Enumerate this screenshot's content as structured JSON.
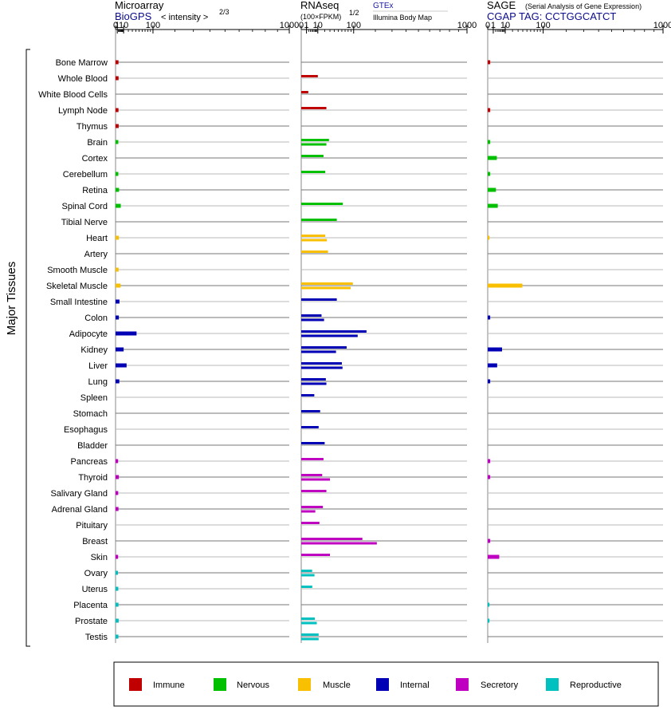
{
  "chart_data": {
    "type": "bar",
    "y_axis_title": "Major Tissues",
    "tissues": [
      {
        "name": "Bone Marrow",
        "group": "Immune",
        "microarray": [
          2.2
        ],
        "rnaseq": [],
        "sage": [
          0.2
        ]
      },
      {
        "name": "Whole Blood",
        "group": "Immune",
        "microarray": [
          2.3
        ],
        "rnaseq": [
          10
        ],
        "sage": []
      },
      {
        "name": "White Blood Cells",
        "group": "Immune",
        "microarray": [],
        "rnaseq": [
          1.8
        ],
        "sage": []
      },
      {
        "name": "Lymph Node",
        "group": "Immune",
        "microarray": [
          2.2
        ],
        "rnaseq": [
          23
        ],
        "sage": [
          0.2
        ]
      },
      {
        "name": "Thymus",
        "group": "Immune",
        "microarray": [
          2.4
        ],
        "rnaseq": [],
        "sage": []
      },
      {
        "name": "Brain",
        "group": "Nervous",
        "microarray": [
          2.0
        ],
        "rnaseq": [
          28,
          23
        ],
        "sage": [
          0.2
        ]
      },
      {
        "name": "Cortex",
        "group": "Nervous",
        "microarray": [],
        "rnaseq": [
          18
        ],
        "sage": [
          2.7
        ]
      },
      {
        "name": "Cerebellum",
        "group": "Nervous",
        "microarray": [
          2.0
        ],
        "rnaseq": [
          21
        ],
        "sage": [
          0.2
        ]
      },
      {
        "name": "Retina",
        "group": "Nervous",
        "microarray": [
          2.8
        ],
        "rnaseq": [],
        "sage": [
          2.2
        ]
      },
      {
        "name": "Spinal Cord",
        "group": "Nervous",
        "microarray": [
          5.2
        ],
        "rnaseq": [
          63
        ],
        "sage": [
          3.3
        ]
      },
      {
        "name": "Tibial Nerve",
        "group": "Nervous",
        "microarray": [],
        "rnaseq": [
          46
        ],
        "sage": []
      },
      {
        "name": "Heart",
        "group": "Muscle",
        "microarray": [
          2.6
        ],
        "rnaseq": [
          21,
          24
        ],
        "sage": [
          0.1
        ]
      },
      {
        "name": "Artery",
        "group": "Muscle",
        "microarray": [],
        "rnaseq": [
          26
        ],
        "sage": []
      },
      {
        "name": "Smooth Muscle",
        "group": "Muscle",
        "microarray": [
          2.3
        ],
        "rnaseq": [],
        "sage": []
      },
      {
        "name": "Skeletal Muscle",
        "group": "Muscle",
        "microarray": [
          4.9
        ],
        "rnaseq": [
          97,
          89
        ],
        "sage": [
          39
        ]
      },
      {
        "name": "Small Intestine",
        "group": "Internal",
        "microarray": [
          3.4
        ],
        "rnaseq": [
          46
        ],
        "sage": []
      },
      {
        "name": "Colon",
        "group": "Internal",
        "microarray": [
          2.6
        ],
        "rnaseq": [
          15,
          19
        ],
        "sage": [
          0.2
        ]
      },
      {
        "name": "Adipocyte",
        "group": "Internal",
        "microarray": [
          42
        ],
        "rnaseq": [
          155,
          116
        ],
        "sage": []
      },
      {
        "name": "Kidney",
        "group": "Internal",
        "microarray": [
          10
        ],
        "rnaseq": [
          75,
          44
        ],
        "sage": [
          6.7
        ]
      },
      {
        "name": "Liver",
        "group": "Internal",
        "microarray": [
          16
        ],
        "rnaseq": [
          60,
          62
        ],
        "sage": [
          2.9
        ]
      },
      {
        "name": "Lung",
        "group": "Internal",
        "microarray": [
          3.2
        ],
        "rnaseq": [
          22,
          23
        ],
        "sage": [
          0.2
        ]
      },
      {
        "name": "Spleen",
        "group": "Internal",
        "microarray": [],
        "rnaseq": [
          6.2
        ],
        "sage": []
      },
      {
        "name": "Stomach",
        "group": "Internal",
        "microarray": [],
        "rnaseq": [
          13
        ],
        "sage": []
      },
      {
        "name": "Esophagus",
        "group": "Internal",
        "microarray": [],
        "rnaseq": [
          11
        ],
        "sage": []
      },
      {
        "name": "Bladder",
        "group": "Internal",
        "microarray": [],
        "rnaseq": [
          20
        ],
        "sage": []
      },
      {
        "name": "Pancreas",
        "group": "Secretory",
        "microarray": [
          1.8
        ],
        "rnaseq": [
          18
        ],
        "sage": [
          0.2
        ]
      },
      {
        "name": "Thyroid",
        "group": "Secretory",
        "microarray": [
          2.6
        ],
        "rnaseq": [
          16,
          30
        ],
        "sage": [
          0.2
        ]
      },
      {
        "name": "Salivary Gland",
        "group": "Secretory",
        "microarray": [
          1.9
        ],
        "rnaseq": [
          23
        ],
        "sage": []
      },
      {
        "name": "Adrenal Gland",
        "group": "Secretory",
        "microarray": [
          2.2
        ],
        "rnaseq": [
          17,
          7.2
        ],
        "sage": []
      },
      {
        "name": "Pituitary",
        "group": "Secretory",
        "microarray": [],
        "rnaseq": [
          12
        ],
        "sage": []
      },
      {
        "name": "Breast",
        "group": "Secretory",
        "microarray": [],
        "rnaseq": [
          136,
          208
        ],
        "sage": [
          0.2
        ]
      },
      {
        "name": "Skin",
        "group": "Secretory",
        "microarray": [
          1.8
        ],
        "rnaseq": [
          30
        ],
        "sage": [
          4.3
        ]
      },
      {
        "name": "Ovary",
        "group": "Reproductive",
        "microarray": [
          1.6
        ],
        "rnaseq": [
          4.3,
          6.4
        ],
        "sage": []
      },
      {
        "name": "Uterus",
        "group": "Reproductive",
        "microarray": [
          2.0
        ],
        "rnaseq": [
          4.4
        ],
        "sage": []
      },
      {
        "name": "Placenta",
        "group": "Reproductive",
        "microarray": [
          2.2
        ],
        "rnaseq": [],
        "sage": [
          0.1
        ]
      },
      {
        "name": "Prostate",
        "group": "Reproductive",
        "microarray": [
          2.4
        ],
        "rnaseq": [
          6.7,
          8.8
        ],
        "sage": [
          0.1
        ]
      },
      {
        "name": "Testis",
        "group": "Reproductive",
        "microarray": [
          2.1
        ],
        "rnaseq": [
          11,
          11
        ]
      }
    ],
    "panels": [
      {
        "key": "microarray",
        "title": "Microarray",
        "subtitle": "BioGPS",
        "axis_note": "< intensity >",
        "axis_exponent": "2/3",
        "power": 0.6667,
        "xlim": [
          0,
          1000
        ],
        "ticks": [
          0,
          1,
          10,
          100,
          1000
        ]
      },
      {
        "key": "rnaseq",
        "title": "RNAseq",
        "axis_note": "(100×FPKM)",
        "axis_exponent": "1/2",
        "source_top": "GTEx",
        "source_bottom": "Illumina Body Map",
        "power": 0.5,
        "xlim": [
          0,
          1000
        ],
        "ticks": [
          0,
          1,
          10,
          100,
          1000
        ]
      },
      {
        "key": "sage",
        "title": "SAGE",
        "title_note": "(Serial Analysis of Gene Expression)",
        "subtitle": "CGAP TAG: CCTGGCATCT",
        "power": 0.5,
        "xlim": [
          0,
          1000
        ],
        "ticks": [
          0,
          1,
          10,
          100,
          1000
        ]
      }
    ],
    "legend": [
      {
        "label": "Immune",
        "color": "#c00000"
      },
      {
        "label": "Nervous",
        "color": "#00c000"
      },
      {
        "label": "Muscle",
        "color": "#f8c000"
      },
      {
        "label": "Internal",
        "color": "#0000b4"
      },
      {
        "label": "Secretory",
        "color": "#c000c0"
      },
      {
        "label": "Reproductive",
        "color": "#00c0c0"
      }
    ]
  }
}
